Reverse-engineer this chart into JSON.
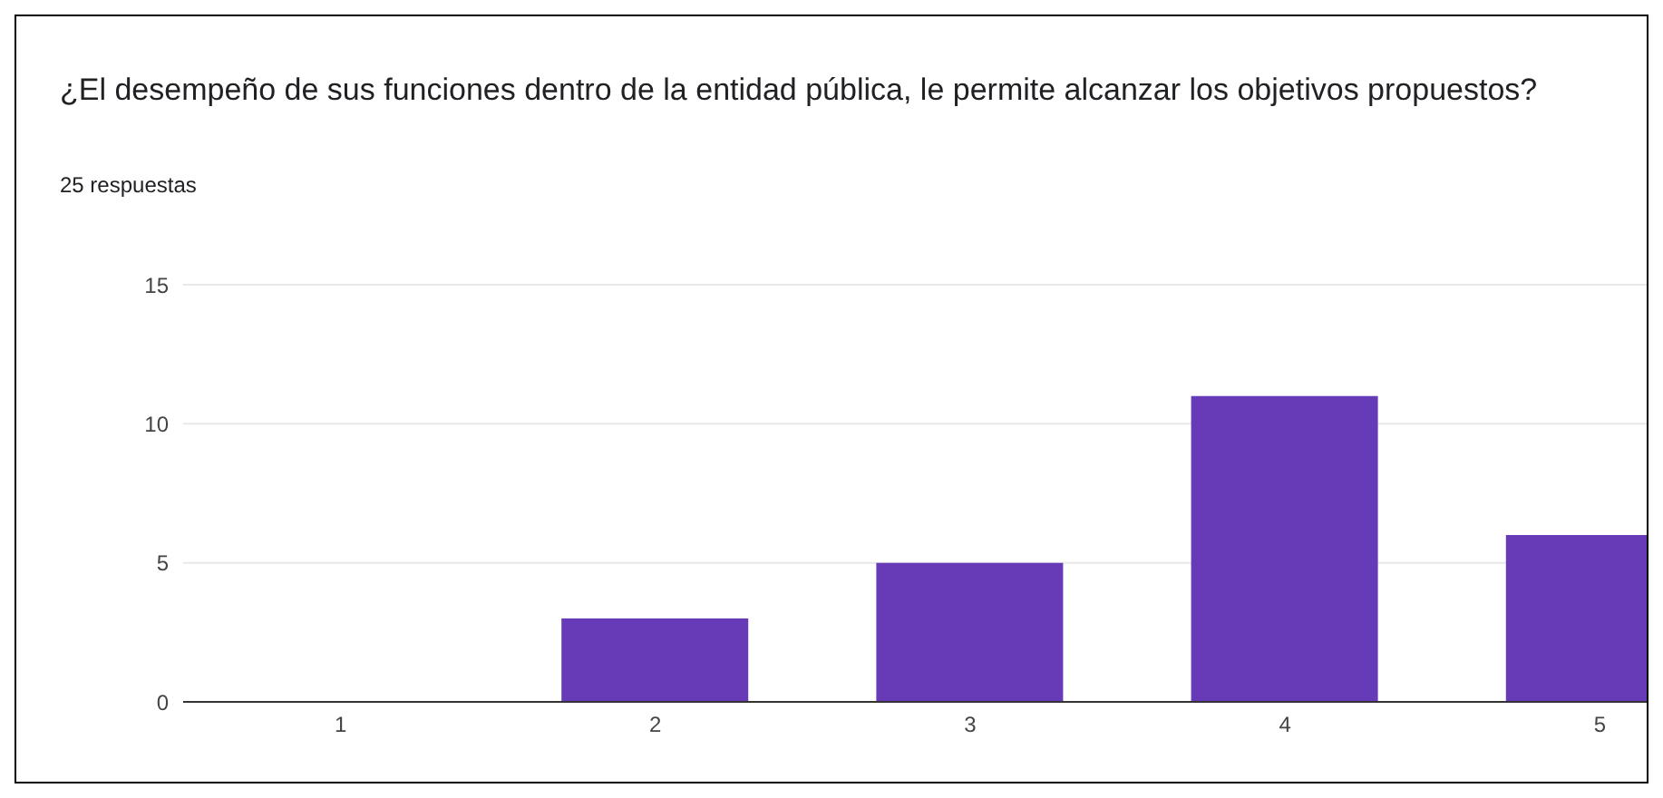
{
  "chart_data": {
    "type": "bar",
    "title": "¿El desempeño de sus funciones dentro de la entidad pública, le permite alcanzar los objetivos propuestos?",
    "subtitle": "25 respuestas",
    "categories": [
      "1",
      "2",
      "3",
      "4",
      "5"
    ],
    "values": [
      0,
      3,
      5,
      11,
      6
    ],
    "color": "#673ab7",
    "ylim": [
      0,
      15
    ],
    "yticks": [
      0,
      5,
      10,
      15
    ],
    "grid": "y",
    "legend": false
  }
}
